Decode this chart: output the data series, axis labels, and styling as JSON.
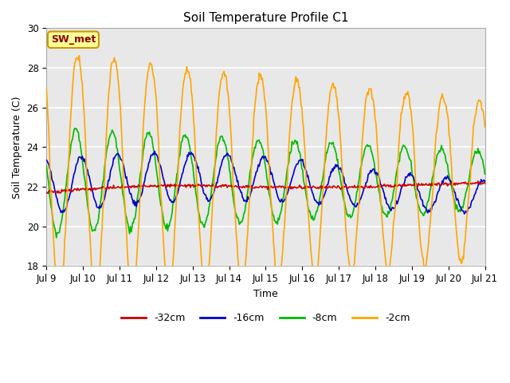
{
  "title": "Soil Temperature Profile C1",
  "xlabel": "Time",
  "ylabel": "Soil Temperature (C)",
  "annotation": "SW_met",
  "ylim": [
    18,
    30
  ],
  "background_color": "#e8e8e8",
  "colors": {
    "-32cm": "#cc0000",
    "-16cm": "#0000cc",
    "-8cm": "#00bb00",
    "-2cm": "#ffa500"
  },
  "x_tick_labels": [
    "Jul 9",
    "Jul 10",
    "Jul 11",
    "Jul 12",
    "Jul 13",
    "Jul 14",
    "Jul 15",
    "Jul 16",
    "Jul 17",
    "Jul 18",
    "Jul 19",
    "Jul 20",
    "Jul 21"
  ],
  "legend_labels": [
    "-32cm",
    "-16cm",
    "-8cm",
    "-2cm"
  ],
  "yticks": [
    18,
    20,
    22,
    24,
    26,
    28,
    30
  ]
}
